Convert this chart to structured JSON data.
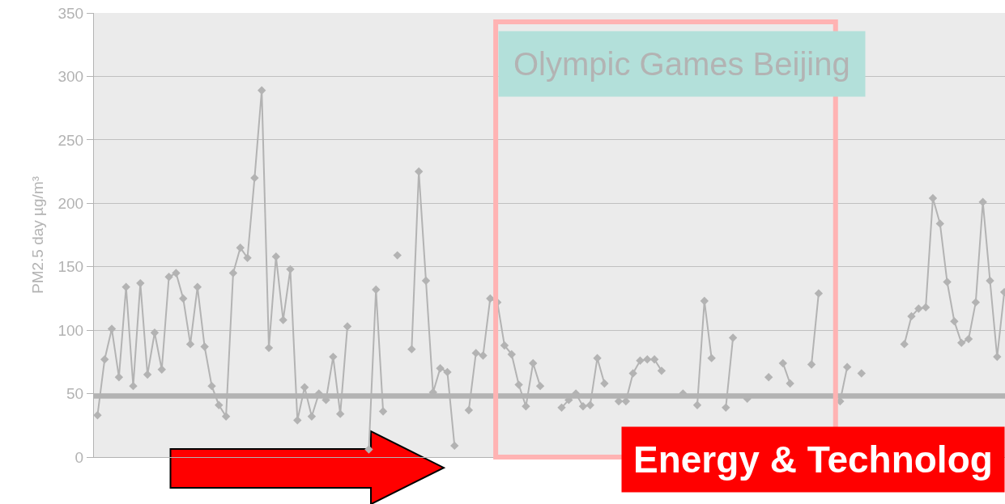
{
  "chart_data": {
    "type": "line",
    "ylabel": "PM2.5 day µg/m³",
    "categories": [
      null,
      null,
      null,
      null,
      null,
      null,
      null,
      null,
      null,
      null,
      null,
      null,
      null,
      null,
      null,
      null,
      null,
      null,
      null,
      null,
      null,
      null,
      null,
      null,
      null,
      null,
      null,
      null,
      null,
      null,
      null,
      null,
      null,
      null,
      null,
      null,
      null,
      null,
      null,
      null,
      null,
      null,
      null,
      null,
      null,
      null,
      null,
      null,
      null,
      null,
      null,
      null,
      null,
      null,
      null,
      null,
      null,
      null,
      null,
      null,
      null,
      null,
      null,
      null,
      null,
      null,
      null,
      null,
      null,
      null,
      null,
      null,
      null,
      null,
      null,
      null,
      null,
      null,
      null,
      null,
      null,
      null,
      null,
      null,
      null,
      null,
      null,
      null,
      null,
      null,
      null,
      null,
      null,
      null,
      null,
      null,
      null,
      null,
      null,
      null,
      null,
      null,
      null,
      null,
      null,
      null,
      null,
      null,
      null,
      null,
      null,
      null,
      null,
      null,
      null,
      null,
      null,
      null,
      null,
      null,
      null,
      null,
      null,
      null,
      null,
      null,
      null,
      null
    ],
    "series": [
      {
        "color": "#b3b3b3",
        "values": [
          33,
          77,
          101,
          63,
          134,
          56,
          137,
          65,
          98,
          69,
          142,
          145,
          125,
          89,
          134,
          87,
          56,
          41,
          32,
          145,
          165,
          157,
          220,
          289,
          86,
          158,
          108,
          148,
          29,
          55,
          32,
          50,
          45,
          79,
          34,
          103,
          null,
          null,
          6,
          132,
          36,
          null,
          159,
          null,
          85,
          225,
          139,
          51,
          70,
          67,
          9,
          null,
          37,
          82,
          80,
          125,
          122,
          88,
          81,
          57,
          40,
          74,
          56,
          null,
          null,
          39,
          45,
          50,
          40,
          41,
          78,
          58,
          null,
          44,
          44,
          66,
          76,
          77,
          77,
          68,
          null,
          null,
          50,
          null,
          41,
          123,
          78,
          null,
          39,
          94,
          null,
          46,
          null,
          null,
          63,
          null,
          74,
          58,
          null,
          null,
          73,
          129,
          null,
          null,
          44,
          71,
          null,
          66,
          null,
          null,
          null,
          null,
          null,
          89,
          111,
          117,
          118,
          204,
          184,
          138,
          107,
          90,
          93,
          122,
          201,
          139,
          79,
          130
        ]
      }
    ],
    "ylim": [
      0,
      350
    ],
    "yticks": [
      0,
      50,
      100,
      150,
      200,
      250,
      300,
      350
    ],
    "grid": "y",
    "marker": "diamond",
    "line_style": "solid",
    "tick_labels": "y",
    "ref_lines": [
      {
        "axis": "y",
        "value": 48,
        "color": "#b3b3b3"
      }
    ],
    "annotations": [
      "Olympic Games Beijing",
      "Energy & Technolog"
    ]
  }
}
